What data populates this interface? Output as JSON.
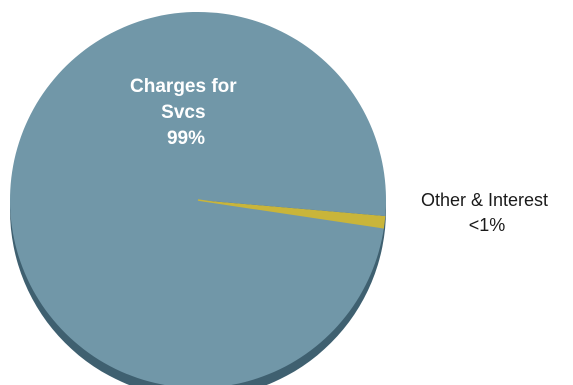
{
  "chart_data": {
    "type": "pie",
    "title": "",
    "legend": "none",
    "slices": [
      {
        "label_lines": [
          "Charges for",
          "Svcs",
          "99%"
        ],
        "value": 99,
        "color": "#7197a8"
      },
      {
        "label_lines": [
          "Other & Interest",
          "<1%"
        ],
        "value": 1,
        "color": "#c9b53a"
      }
    ],
    "side_color": "#3f6070"
  }
}
